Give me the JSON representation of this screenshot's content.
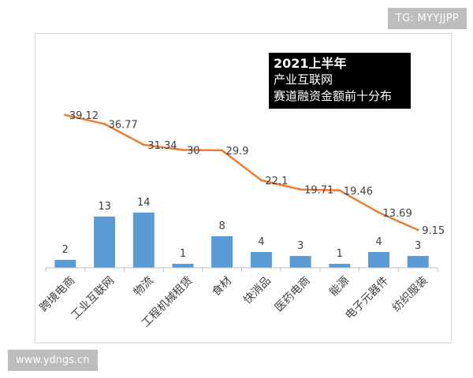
{
  "watermarks": {
    "top_right": "TG: MYYJJPP",
    "bottom_left": "www.ydngs.cn"
  },
  "chart_data": {
    "type": "bar",
    "title_lines": [
      "2021上半年",
      "产业互联网",
      "赛道融资金额前十分布"
    ],
    "categories": [
      "跨境电商",
      "工业互联网",
      "物流",
      "工程机械租赁",
      "食材",
      "快消品",
      "医药电商",
      "能源",
      "电子元器件",
      "纺织服装"
    ],
    "series": [
      {
        "type": "bar",
        "color": "#5b9bd5",
        "values": [
          2,
          13,
          14,
          1,
          8,
          4,
          3,
          1,
          4,
          3
        ],
        "labels": [
          "2",
          "13",
          "14",
          "1",
          "8",
          "4",
          "3",
          "1",
          "4",
          "3"
        ]
      },
      {
        "type": "line",
        "color": "#ed7d31",
        "values": [
          39.12,
          36.77,
          31.34,
          30,
          29.9,
          22.1,
          19.71,
          19.46,
          13.69,
          9.15
        ],
        "labels": [
          "39.12",
          "36.77",
          "31.34",
          "30",
          "29.9",
          "22.1",
          "19.71",
          "19.46",
          "13.69",
          "9.15"
        ]
      }
    ],
    "xlabel": "",
    "ylabel": "",
    "grid": false,
    "legend": "none"
  }
}
